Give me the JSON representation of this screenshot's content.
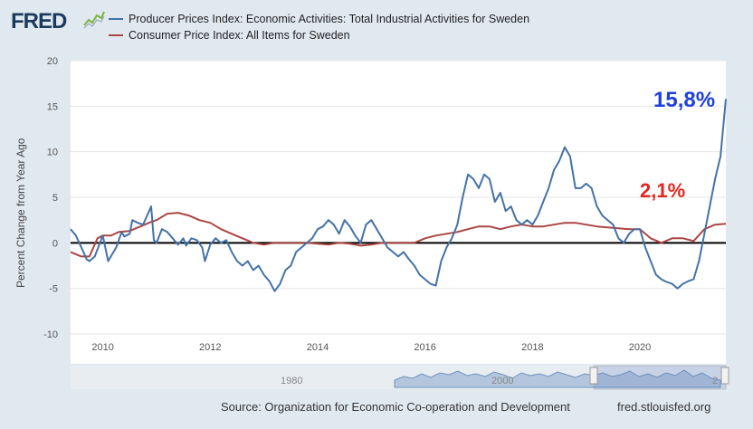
{
  "header": {
    "logo_text": "FRED",
    "logo_icon": "fred-graph-icon"
  },
  "legend": [
    {
      "label": "Producer Prices Index: Economic Activities: Total Industrial Activities for Sweden",
      "color": "#4572a7"
    },
    {
      "label": "Consumer Price Index: All Items for Sweden",
      "color": "#aa4643"
    }
  ],
  "footer": {
    "source": "Source: Organization for Economic Co-operation and Development",
    "site": "fred.stlouisfed.org"
  },
  "navigator": {
    "label_left": "1980",
    "label_mid": "2000",
    "label_right": "2"
  },
  "annotations": {
    "ppi": "15,8%",
    "cpi": "2,1%"
  },
  "chart_data": {
    "type": "line",
    "title": "",
    "xlabel": "",
    "ylabel": "Percent Change from Year Ago",
    "xlim": [
      2009.4,
      2021.6
    ],
    "ylim": [
      -10,
      20
    ],
    "xticks": [
      2010,
      2012,
      2014,
      2016,
      2018,
      2020
    ],
    "xtick_labels": [
      "2010",
      "2012",
      "2014",
      "2016",
      "2018",
      "2020"
    ],
    "yticks": [
      -10,
      -5,
      0,
      5,
      10,
      15,
      20
    ],
    "ytick_labels": [
      "-10",
      "-5",
      "0",
      "5",
      "10",
      "15",
      "20"
    ],
    "series": [
      {
        "name": "Producer Prices Index: Economic Activities: Total Industrial Activities for Sweden",
        "color": "#4572a7",
        "x": [
          2009.4,
          2009.5,
          2009.6,
          2009.7,
          2009.75,
          2009.85,
          2010.0,
          2010.1,
          2010.15,
          2010.25,
          2010.35,
          2010.4,
          2010.5,
          2010.55,
          2010.65,
          2010.75,
          2010.9,
          2010.95,
          2011.0,
          2011.1,
          2011.2,
          2011.3,
          2011.4,
          2011.5,
          2011.55,
          2011.65,
          2011.75,
          2011.85,
          2011.9,
          2012.0,
          2012.1,
          2012.2,
          2012.3,
          2012.4,
          2012.5,
          2012.6,
          2012.7,
          2012.8,
          2012.9,
          2013.0,
          2013.1,
          2013.2,
          2013.3,
          2013.4,
          2013.5,
          2013.6,
          2013.7,
          2013.8,
          2013.9,
          2014.0,
          2014.1,
          2014.2,
          2014.3,
          2014.4,
          2014.5,
          2014.6,
          2014.7,
          2014.8,
          2014.9,
          2015.0,
          2015.1,
          2015.2,
          2015.3,
          2015.4,
          2015.5,
          2015.6,
          2015.7,
          2015.8,
          2015.9,
          2016.0,
          2016.1,
          2016.2,
          2016.3,
          2016.4,
          2016.5,
          2016.6,
          2016.7,
          2016.8,
          2016.9,
          2017.0,
          2017.1,
          2017.2,
          2017.3,
          2017.4,
          2017.5,
          2017.6,
          2017.7,
          2017.8,
          2017.9,
          2018.0,
          2018.1,
          2018.2,
          2018.3,
          2018.4,
          2018.5,
          2018.6,
          2018.7,
          2018.8,
          2018.9,
          2019.0,
          2019.1,
          2019.2,
          2019.3,
          2019.4,
          2019.5,
          2019.6,
          2019.7,
          2019.8,
          2019.9,
          2020.0,
          2020.1,
          2020.2,
          2020.3,
          2020.4,
          2020.5,
          2020.6,
          2020.7,
          2020.8,
          2020.9,
          2021.0,
          2021.1,
          2021.2,
          2021.3,
          2021.4,
          2021.5,
          2021.6
        ],
        "values": [
          1.5,
          0.8,
          -0.5,
          -1.8,
          -2.0,
          -1.5,
          0.8,
          -2.0,
          -1.5,
          -0.5,
          1.2,
          0.7,
          1.0,
          2.5,
          2.2,
          2.0,
          4.0,
          0.3,
          0.0,
          1.5,
          1.2,
          0.5,
          -0.2,
          0.5,
          -0.3,
          0.5,
          0.3,
          -0.5,
          -2.0,
          -0.2,
          0.5,
          0.0,
          0.3,
          -1.0,
          -2.0,
          -2.5,
          -2.0,
          -3.0,
          -2.5,
          -3.5,
          -4.2,
          -5.3,
          -4.5,
          -3.0,
          -2.5,
          -1.0,
          -0.5,
          0.0,
          0.5,
          1.5,
          1.8,
          2.5,
          2.0,
          1.0,
          2.5,
          1.8,
          0.8,
          0.0,
          2.0,
          2.5,
          1.5,
          0.5,
          -0.5,
          -1.0,
          -1.5,
          -1.0,
          -1.8,
          -2.5,
          -3.5,
          -4.0,
          -4.5,
          -4.7,
          -2.0,
          -0.5,
          0.5,
          2.0,
          5.0,
          7.5,
          7.0,
          6.0,
          7.5,
          7.0,
          4.5,
          5.5,
          3.5,
          4.0,
          2.5,
          2.0,
          2.5,
          2.0,
          3.0,
          4.5,
          6.0,
          8.0,
          9.0,
          10.5,
          9.5,
          6.0,
          6.0,
          6.5,
          6.0,
          4.0,
          3.0,
          2.5,
          2.0,
          0.5,
          0.0,
          1.0,
          1.5,
          1.5,
          -0.5,
          -2.0,
          -3.5,
          -4.0,
          -4.3,
          -4.5,
          -5.0,
          -4.5,
          -4.2,
          -4.0,
          -2.0,
          1.0,
          4.0,
          7.0,
          9.5,
          15.8
        ]
      },
      {
        "name": "Consumer Price Index: All Items for Sweden",
        "color": "#aa4643",
        "x": [
          2009.4,
          2009.6,
          2009.75,
          2009.9,
          2010.0,
          2010.15,
          2010.3,
          2010.5,
          2010.7,
          2010.9,
          2011.0,
          2011.2,
          2011.4,
          2011.6,
          2011.8,
          2012.0,
          2012.2,
          2012.4,
          2012.6,
          2012.8,
          2013.0,
          2013.2,
          2013.4,
          2013.6,
          2013.8,
          2014.0,
          2014.2,
          2014.4,
          2014.6,
          2014.8,
          2015.0,
          2015.2,
          2015.4,
          2015.6,
          2015.8,
          2016.0,
          2016.2,
          2016.4,
          2016.6,
          2016.8,
          2017.0,
          2017.2,
          2017.4,
          2017.6,
          2017.8,
          2018.0,
          2018.2,
          2018.4,
          2018.6,
          2018.8,
          2019.0,
          2019.2,
          2019.4,
          2019.6,
          2019.8,
          2020.0,
          2020.2,
          2020.4,
          2020.6,
          2020.8,
          2021.0,
          2021.2,
          2021.4,
          2021.6
        ],
        "values": [
          -1.0,
          -1.5,
          -1.5,
          0.5,
          0.8,
          0.8,
          1.2,
          1.3,
          1.8,
          2.3,
          2.5,
          3.2,
          3.3,
          3.0,
          2.5,
          2.2,
          1.5,
          1.0,
          0.5,
          0.0,
          -0.2,
          0.0,
          0.0,
          0.0,
          0.0,
          -0.1,
          -0.2,
          0.0,
          -0.1,
          -0.3,
          -0.2,
          0.0,
          0.0,
          0.0,
          0.0,
          0.5,
          0.8,
          1.0,
          1.2,
          1.5,
          1.8,
          1.8,
          1.5,
          1.8,
          2.0,
          1.8,
          1.8,
          2.0,
          2.2,
          2.2,
          2.0,
          1.8,
          1.7,
          1.6,
          1.5,
          1.5,
          0.5,
          0.0,
          0.5,
          0.5,
          0.2,
          1.5,
          2.0,
          2.1
        ]
      }
    ]
  }
}
